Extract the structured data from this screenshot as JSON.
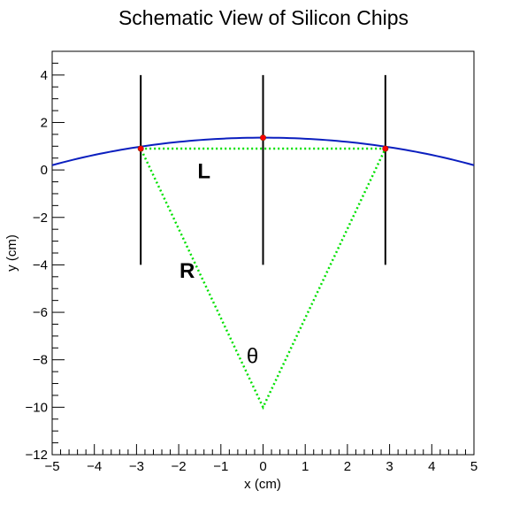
{
  "chart_data": {
    "type": "line",
    "title": "Schematic View of Silicon Chips",
    "xlabel": "x (cm)",
    "ylabel": "y (cm)",
    "xlim": [
      -5,
      5
    ],
    "ylim": [
      -12,
      5
    ],
    "x_ticks": [
      -5,
      -4,
      -3,
      -2,
      -1,
      0,
      1,
      2,
      3,
      4,
      5
    ],
    "y_ticks": [
      -12,
      -10,
      -8,
      -6,
      -4,
      -2,
      0,
      2,
      4
    ],
    "grid": false,
    "legend": "none",
    "colors": {
      "arc": "#0b1fbf",
      "chips": "#000000",
      "triangle": "#00e000",
      "hits": "#ff0000"
    },
    "arc": {
      "center": [
        0,
        -10
      ],
      "radius": 11.36,
      "x_range": [
        -5,
        5
      ]
    },
    "chips": [
      {
        "x": -2.9,
        "y1": -4,
        "y2": 4
      },
      {
        "x": 0,
        "y1": -4,
        "y2": 4
      },
      {
        "x": 2.9,
        "y1": -4,
        "y2": 4
      }
    ],
    "hits": [
      {
        "x": -2.9,
        "y": 0.9
      },
      {
        "x": 0,
        "y": 1.36
      },
      {
        "x": 2.9,
        "y": 0.9
      }
    ],
    "triangle": [
      [
        -2.9,
        0.9
      ],
      [
        2.9,
        0.9
      ],
      [
        0,
        -10
      ]
    ],
    "annotations": [
      {
        "text": "L",
        "x": -1.4,
        "y": -0.35,
        "bold": true
      },
      {
        "text": "R",
        "x": -1.8,
        "y": -4.55,
        "bold": true
      },
      {
        "text": "θ",
        "x": -0.25,
        "y": -8.15,
        "bold": false
      }
    ]
  }
}
